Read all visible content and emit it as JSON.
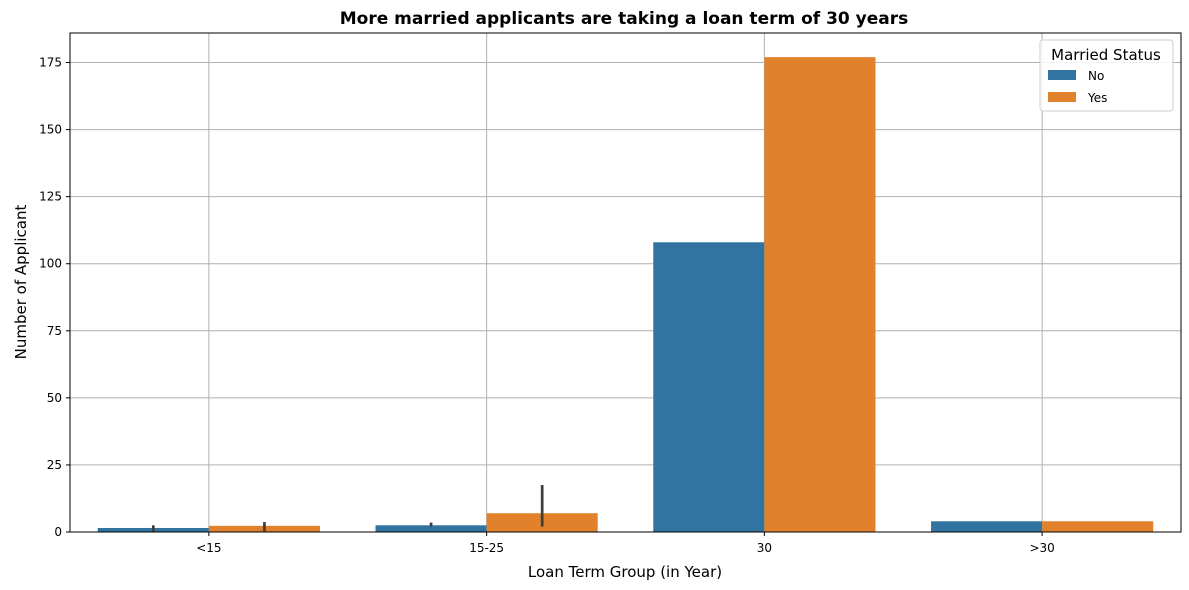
{
  "chart_data": {
    "type": "bar",
    "title": "More married applicants are taking a loan term of 30 years",
    "xlabel": "Loan Term Group (in Year)",
    "ylabel": "Number of Applicant",
    "categories": [
      "<15",
      "15-25",
      "30",
      ">30"
    ],
    "series": [
      {
        "name": "No",
        "color": "#3274a1",
        "values": [
          1.5,
          2.5,
          108,
          4
        ],
        "error_low": [
          0,
          2,
          null,
          null
        ],
        "error_high": [
          2.5,
          3.5,
          null,
          null
        ]
      },
      {
        "name": "Yes",
        "color": "#e1812c",
        "values": [
          2.3,
          7,
          177,
          4
        ],
        "error_low": [
          0.3,
          2,
          null,
          null
        ],
        "error_high": [
          3.7,
          17.5,
          null,
          null
        ]
      }
    ],
    "ylim": [
      0,
      186
    ],
    "yticks": [
      0,
      25,
      50,
      75,
      100,
      125,
      150,
      175
    ],
    "grid": true,
    "legend": {
      "title": "Married Status",
      "placement": "top-right"
    }
  }
}
